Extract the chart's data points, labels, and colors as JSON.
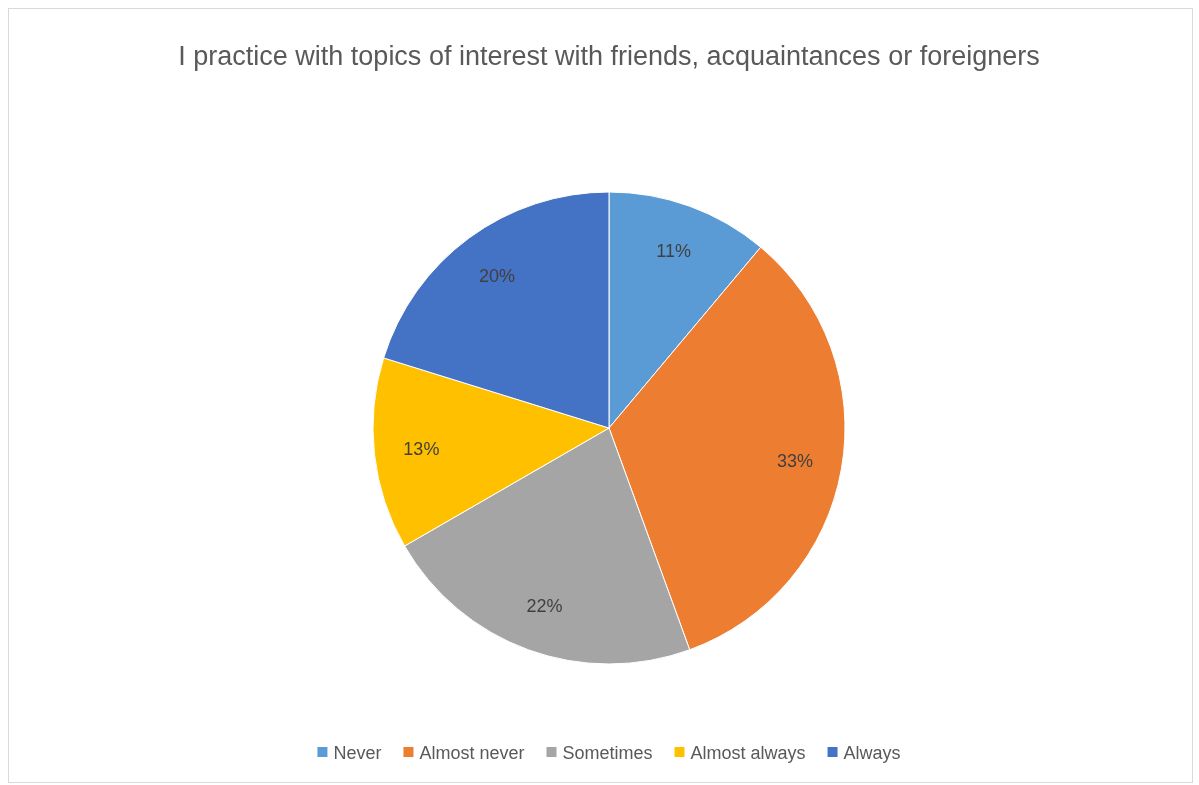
{
  "chart_data": {
    "type": "pie",
    "title": "I practice with topics of interest with friends, acquaintances or foreigners",
    "categories": [
      "Never",
      "Almost never",
      "Sometimes",
      "Almost always",
      "Always"
    ],
    "values": [
      11,
      33,
      22,
      13,
      20
    ],
    "colors": [
      "#5b9bd5",
      "#ed7d31",
      "#a5a5a5",
      "#ffc000",
      "#4472c4"
    ],
    "value_labels": [
      "11%",
      "33%",
      "22%",
      "13%",
      "20%"
    ],
    "legend": "bottom"
  }
}
